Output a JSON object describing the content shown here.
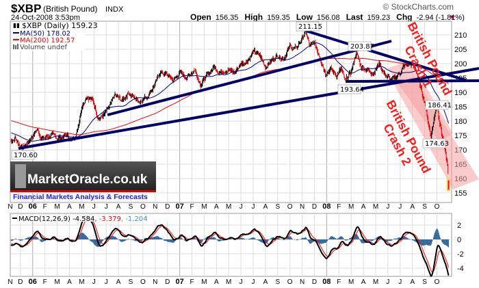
{
  "header": {
    "symbol": "$XBP",
    "name": "(British Pound)",
    "exchange": "INDX",
    "datetime": "24-Oct-2008 3:53pm",
    "copyright": "© StockCharts.com",
    "open_label": "Open",
    "open": "156.35",
    "high_label": "High",
    "high": "159.35",
    "low_label": "Low",
    "low": "156.08",
    "last_label": "Last",
    "last": "159.23",
    "chg_label": "Chg",
    "chg": "-2.94 (-1.81%)"
  },
  "legend": {
    "price": "$XBP (Daily) 159.23",
    "ma50": "MA(50) 178.02",
    "ma200": "MA(200) 192.57",
    "volume": "Volume undef",
    "macd_name": "MACD(12,26,9) -4.584",
    "macd_signal": ", -3.379",
    "macd_hist": ", -1.204"
  },
  "annotations": {
    "low_2005": "170.60",
    "high_2007": "211.15",
    "high_2008": "203.87",
    "low_2008": "193.64",
    "rebound": "186.41",
    "low_oct": "174.63",
    "crash1_line1": "British Pound",
    "crash1_line2": "Crash 1",
    "crash2_line1": "British Pound",
    "crash2_line2": "Crash 2"
  },
  "watermark": {
    "brand": "MarketOracle.co.uk",
    "tagline": "Financial Markets Analysis & Forecasts"
  },
  "colors": {
    "up": "#000000",
    "down": "#e00000",
    "ma50": "#000080",
    "ma200": "#ff0000",
    "trendline": "#000066",
    "band": "#f4a0a0",
    "crash_text": "#ff1a1a",
    "histogram": "#336699",
    "signal": "#ff0000"
  },
  "chart_data": {
    "type": "line",
    "title": "$XBP (British Pound) INDX Daily",
    "x_unit": "months since Nov 2005",
    "month_labels": [
      "N",
      "D",
      "06",
      "F",
      "M",
      "A",
      "M",
      "J",
      "J",
      "A",
      "S",
      "O",
      "N",
      "D",
      "07",
      "F",
      "M",
      "A",
      "M",
      "J",
      "J",
      "A",
      "S",
      "O",
      "N",
      "D",
      "08",
      "F",
      "M",
      "A",
      "M",
      "J",
      "J",
      "A",
      "S",
      "O"
    ],
    "price_axis": {
      "ticks": [
        155,
        160,
        165,
        170,
        175,
        180,
        185,
        190,
        195,
        200,
        205,
        210
      ],
      "range": [
        150,
        218.6
      ]
    },
    "macd_axis": {
      "ticks": [
        2,
        0,
        -2,
        -4
      ],
      "range": [
        -5.2,
        3.6
      ]
    },
    "price_waypoints": [
      [
        0,
        175
      ],
      [
        0.3,
        173
      ],
      [
        0.6,
        174
      ],
      [
        1.1,
        170.6
      ],
      [
        1.5,
        172
      ],
      [
        2,
        175
      ],
      [
        2.3,
        177
      ],
      [
        2.8,
        174
      ],
      [
        3.5,
        175
      ],
      [
        4.2,
        174
      ],
      [
        4.8,
        175
      ],
      [
        5.2,
        173
      ],
      [
        5.6,
        176
      ],
      [
        6,
        185
      ],
      [
        6.4,
        189
      ],
      [
        6.9,
        187
      ],
      [
        7.4,
        181
      ],
      [
        7.8,
        182
      ],
      [
        8.3,
        185
      ],
      [
        8.7,
        189
      ],
      [
        9.3,
        187
      ],
      [
        9.8,
        190
      ],
      [
        10.3,
        188
      ],
      [
        10.8,
        187
      ],
      [
        11.4,
        189
      ],
      [
        12,
        193
      ],
      [
        12.4,
        197
      ],
      [
        13,
        196
      ],
      [
        13.5,
        194
      ],
      [
        14,
        197
      ],
      [
        14.6,
        195
      ],
      [
        15.2,
        198
      ],
      [
        15.7,
        193
      ],
      [
        16.3,
        196
      ],
      [
        16.8,
        199
      ],
      [
        17.3,
        197
      ],
      [
        17.8,
        198
      ],
      [
        18.5,
        197
      ],
      [
        19,
        200
      ],
      [
        19.5,
        201
      ],
      [
        20,
        204
      ],
      [
        20.5,
        203
      ],
      [
        21,
        199
      ],
      [
        21.5,
        201
      ],
      [
        22,
        203
      ],
      [
        22.5,
        202
      ],
      [
        23,
        206
      ],
      [
        23.5,
        205
      ],
      [
        24,
        209
      ],
      [
        24.3,
        211.15
      ],
      [
        24.6,
        206
      ],
      [
        25,
        207
      ],
      [
        25.4,
        203
      ],
      [
        25.9,
        197
      ],
      [
        26.3,
        198
      ],
      [
        26.8,
        196
      ],
      [
        27.2,
        198
      ],
      [
        27.5,
        193.64
      ],
      [
        28,
        197
      ],
      [
        28.4,
        203.87
      ],
      [
        28.8,
        199
      ],
      [
        29.3,
        198
      ],
      [
        29.8,
        197
      ],
      [
        30.3,
        200
      ],
      [
        30.8,
        196
      ],
      [
        31.3,
        194
      ],
      [
        31.8,
        196
      ],
      [
        32.3,
        199
      ],
      [
        32.8,
        200
      ],
      [
        33.3,
        198
      ],
      [
        33.7,
        191
      ],
      [
        34,
        187
      ],
      [
        34.5,
        174.63
      ],
      [
        35,
        186.41
      ],
      [
        35.3,
        178
      ],
      [
        35.6,
        171
      ],
      [
        35.8,
        166
      ],
      [
        36,
        159.23
      ]
    ],
    "series": [
      {
        "name": "$XBP (Daily)",
        "last": 159.23
      },
      {
        "name": "MA(50)",
        "last": 178.02
      },
      {
        "name": "MA(200)",
        "last": 192.57
      },
      {
        "name": "MACD(12,26,9)",
        "last": -4.584
      },
      {
        "name": "Signal",
        "last": -3.379
      },
      {
        "name": "Histogram",
        "last": -1.204
      }
    ],
    "legend_position": "top-left",
    "grid": true
  }
}
